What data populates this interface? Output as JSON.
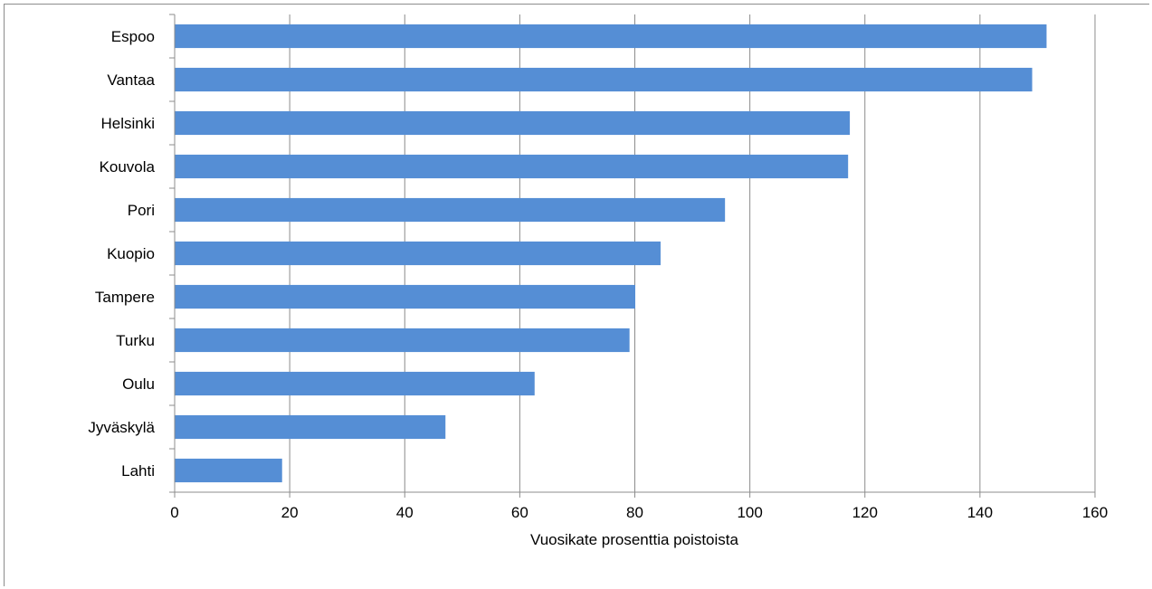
{
  "chart_data": {
    "type": "bar",
    "orientation": "horizontal",
    "title": "",
    "xlabel": "Vuosikate prosenttia poistoista",
    "ylabel": "",
    "categories": [
      "Espoo",
      "Vantaa",
      "Helsinki",
      "Kouvola",
      "Pori",
      "Kuopio",
      "Tampere",
      "Turku",
      "Oulu",
      "Jyväskylä",
      "Lahti"
    ],
    "values": [
      151.5,
      149,
      117.3,
      117,
      95.6,
      84.4,
      80,
      79,
      62.5,
      47,
      18.6
    ],
    "xlim": [
      0,
      160
    ],
    "xticks": [
      "0",
      "20",
      "40",
      "60",
      "80",
      "100",
      "120",
      "140",
      "160"
    ],
    "grid": "vertical",
    "legend": "none",
    "bar_color": "#558ed5"
  }
}
